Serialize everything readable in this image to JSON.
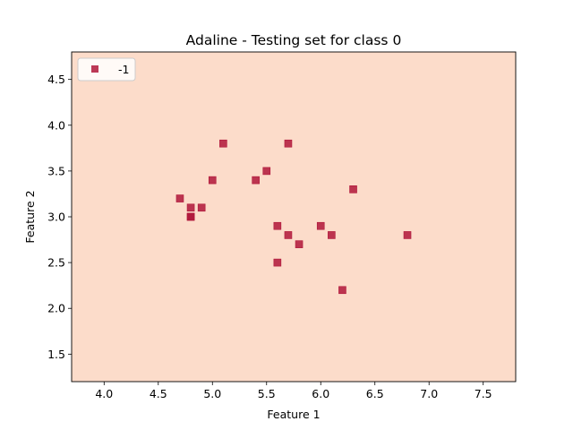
{
  "chart_data": {
    "type": "scatter",
    "title": "Adaline - Testing set for class 0",
    "xlabel": "Feature 1",
    "ylabel": "Feature 2",
    "xlim": [
      3.7,
      7.8
    ],
    "ylim": [
      1.2,
      4.8
    ],
    "xticks": [
      "4.0",
      "4.5",
      "5.0",
      "5.5",
      "6.0",
      "6.5",
      "7.0",
      "7.5"
    ],
    "yticks": [
      "1.5",
      "2.0",
      "2.5",
      "3.0",
      "3.5",
      "4.0",
      "4.5"
    ],
    "grid": false,
    "background_color": "#fcdcca",
    "legend": {
      "position": "upper-left",
      "entries": [
        "-1"
      ]
    },
    "series": [
      {
        "name": "-1",
        "marker": "square",
        "color": "#b0163a",
        "points": [
          [
            5.1,
            3.8
          ],
          [
            5.7,
            3.8
          ],
          [
            5.5,
            3.5
          ],
          [
            5.0,
            3.4
          ],
          [
            5.4,
            3.4
          ],
          [
            6.3,
            3.3
          ],
          [
            4.7,
            3.2
          ],
          [
            4.8,
            3.1
          ],
          [
            4.9,
            3.1
          ],
          [
            4.8,
            3.0
          ],
          [
            4.8,
            3.0
          ],
          [
            5.6,
            2.9
          ],
          [
            6.0,
            2.9
          ],
          [
            5.7,
            2.8
          ],
          [
            6.1,
            2.8
          ],
          [
            6.8,
            2.8
          ],
          [
            5.8,
            2.7
          ],
          [
            5.6,
            2.5
          ],
          [
            6.2,
            2.2
          ]
        ]
      }
    ]
  }
}
